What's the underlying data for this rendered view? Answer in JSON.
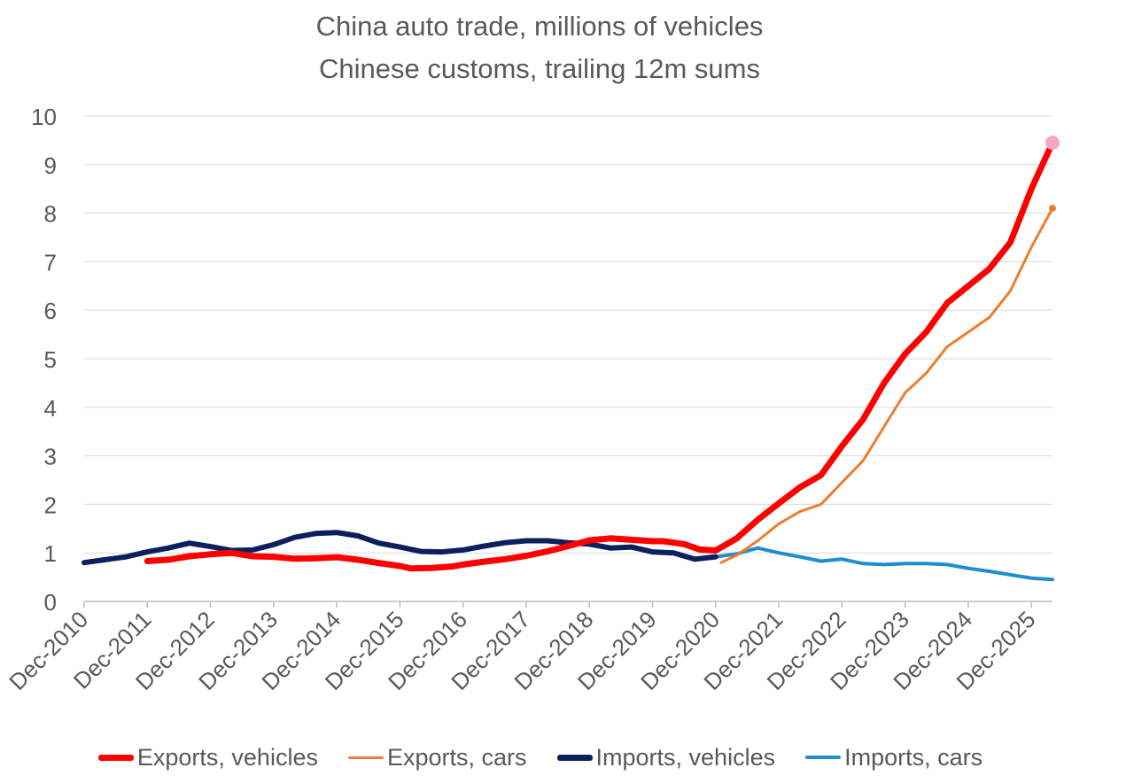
{
  "chart_data": {
    "type": "line",
    "title": "China auto trade, millions of vehicles",
    "subtitle": "Chinese customs, trailing 12m sums",
    "xlabel": "",
    "ylabel": "",
    "ylim": [
      0,
      10
    ],
    "yticks": [
      "0",
      "1",
      "2",
      "3",
      "4",
      "5",
      "6",
      "7",
      "8",
      "9",
      "10"
    ],
    "xticks": [
      "Dec-2010",
      "Dec-2011",
      "Dec-2012",
      "Dec-2013",
      "Dec-2014",
      "Dec-2015",
      "Dec-2016",
      "Dec-2017",
      "Dec-2018",
      "Dec-2019",
      "Dec-2020",
      "Dec-2021",
      "Dec-2022",
      "Dec-2023",
      "Dec-2024",
      "Dec-2025"
    ],
    "x_range": [
      "2010-12",
      "2026-04"
    ],
    "grid": true,
    "legend_position": "bottom",
    "series": [
      {
        "name": "Exports, vehicles",
        "color": "#ff0000",
        "points": [
          [
            "2011-12",
            0.83
          ],
          [
            "2012-04",
            0.86
          ],
          [
            "2012-08",
            0.93
          ],
          [
            "2012-12",
            0.97
          ],
          [
            "2013-04",
            1.0
          ],
          [
            "2013-08",
            0.93
          ],
          [
            "2013-12",
            0.92
          ],
          [
            "2014-04",
            0.88
          ],
          [
            "2014-08",
            0.89
          ],
          [
            "2014-12",
            0.91
          ],
          [
            "2015-04",
            0.86
          ],
          [
            "2015-08",
            0.79
          ],
          [
            "2015-12",
            0.73
          ],
          [
            "2016-02",
            0.68
          ],
          [
            "2016-06",
            0.69
          ],
          [
            "2016-10",
            0.72
          ],
          [
            "2016-12",
            0.76
          ],
          [
            "2017-04",
            0.82
          ],
          [
            "2017-08",
            0.87
          ],
          [
            "2017-12",
            0.94
          ],
          [
            "2018-04",
            1.03
          ],
          [
            "2018-08",
            1.14
          ],
          [
            "2018-12",
            1.26
          ],
          [
            "2019-04",
            1.3
          ],
          [
            "2019-08",
            1.27
          ],
          [
            "2019-12",
            1.24
          ],
          [
            "2020-02",
            1.24
          ],
          [
            "2020-06",
            1.18
          ],
          [
            "2020-09",
            1.07
          ],
          [
            "2020-12",
            1.05
          ],
          [
            "2021-04",
            1.3
          ],
          [
            "2021-08",
            1.68
          ],
          [
            "2021-12",
            2.02
          ],
          [
            "2022-04",
            2.35
          ],
          [
            "2022-08",
            2.6
          ],
          [
            "2022-12",
            3.2
          ],
          [
            "2023-04",
            3.75
          ],
          [
            "2023-08",
            4.5
          ],
          [
            "2023-12",
            5.1
          ],
          [
            "2024-04",
            5.55
          ],
          [
            "2024-08",
            6.15
          ],
          [
            "2024-12",
            6.5
          ],
          [
            "2025-04",
            6.85
          ],
          [
            "2025-08",
            7.4
          ],
          [
            "2025-12",
            8.5
          ],
          [
            "2026-04",
            9.45
          ]
        ]
      },
      {
        "name": "Exports, cars",
        "color": "#ed7d31",
        "points": [
          [
            "2021-01",
            0.8
          ],
          [
            "2021-04",
            0.95
          ],
          [
            "2021-08",
            1.25
          ],
          [
            "2021-12",
            1.6
          ],
          [
            "2022-04",
            1.85
          ],
          [
            "2022-08",
            2.0
          ],
          [
            "2022-12",
            2.45
          ],
          [
            "2023-04",
            2.9
          ],
          [
            "2023-08",
            3.6
          ],
          [
            "2023-12",
            4.3
          ],
          [
            "2024-04",
            4.7
          ],
          [
            "2024-08",
            5.25
          ],
          [
            "2024-12",
            5.55
          ],
          [
            "2025-04",
            5.85
          ],
          [
            "2025-08",
            6.4
          ],
          [
            "2025-12",
            7.3
          ],
          [
            "2026-04",
            8.1
          ]
        ]
      },
      {
        "name": "Imports, vehicles",
        "color": "#0c1f5e",
        "points": [
          [
            "2010-12",
            0.8
          ],
          [
            "2011-04",
            0.86
          ],
          [
            "2011-08",
            0.92
          ],
          [
            "2011-12",
            1.02
          ],
          [
            "2012-04",
            1.1
          ],
          [
            "2012-08",
            1.2
          ],
          [
            "2012-12",
            1.13
          ],
          [
            "2013-04",
            1.05
          ],
          [
            "2013-08",
            1.06
          ],
          [
            "2013-12",
            1.17
          ],
          [
            "2014-04",
            1.32
          ],
          [
            "2014-08",
            1.4
          ],
          [
            "2014-12",
            1.42
          ],
          [
            "2015-04",
            1.35
          ],
          [
            "2015-08",
            1.2
          ],
          [
            "2015-12",
            1.12
          ],
          [
            "2016-04",
            1.03
          ],
          [
            "2016-08",
            1.02
          ],
          [
            "2016-12",
            1.06
          ],
          [
            "2017-04",
            1.14
          ],
          [
            "2017-08",
            1.21
          ],
          [
            "2017-12",
            1.25
          ],
          [
            "2018-04",
            1.25
          ],
          [
            "2018-08",
            1.21
          ],
          [
            "2018-12",
            1.18
          ],
          [
            "2019-04",
            1.1
          ],
          [
            "2019-08",
            1.12
          ],
          [
            "2019-12",
            1.02
          ],
          [
            "2020-04",
            1.0
          ],
          [
            "2020-08",
            0.87
          ],
          [
            "2020-12",
            0.92
          ]
        ]
      },
      {
        "name": "Imports, cars",
        "color": "#1f8ed0",
        "points": [
          [
            "2020-12",
            0.92
          ],
          [
            "2021-04",
            0.98
          ],
          [
            "2021-08",
            1.1
          ],
          [
            "2021-12",
            1.0
          ],
          [
            "2022-04",
            0.92
          ],
          [
            "2022-08",
            0.83
          ],
          [
            "2022-12",
            0.87
          ],
          [
            "2023-04",
            0.78
          ],
          [
            "2023-08",
            0.76
          ],
          [
            "2023-12",
            0.78
          ],
          [
            "2024-04",
            0.78
          ],
          [
            "2024-08",
            0.76
          ],
          [
            "2024-12",
            0.68
          ],
          [
            "2025-04",
            0.62
          ],
          [
            "2025-08",
            0.55
          ],
          [
            "2025-12",
            0.48
          ],
          [
            "2026-04",
            0.45
          ]
        ]
      }
    ]
  }
}
